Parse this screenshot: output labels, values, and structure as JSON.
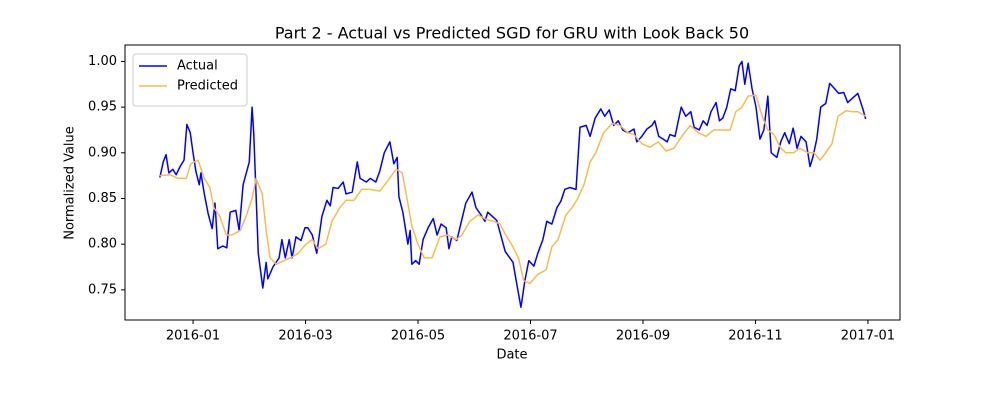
{
  "chart_data": {
    "type": "line",
    "title": "Part 2 - Actual vs Predicted SGD for GRU with Look Back 50",
    "x_label": "Date",
    "y_label": "Normalized Value",
    "xlim": [
      -1.21,
      12.57
    ],
    "ylim": [
      0.717,
      1.018
    ],
    "xticks": [
      {
        "value": 0,
        "label": "2016-01"
      },
      {
        "value": 2,
        "label": "2016-03"
      },
      {
        "value": 4,
        "label": "2016-05"
      },
      {
        "value": 6,
        "label": "2016-07"
      },
      {
        "value": 8,
        "label": "2016-09"
      },
      {
        "value": 10,
        "label": "2016-11"
      },
      {
        "value": 12,
        "label": "2017-01"
      }
    ],
    "yticks": [
      0.75,
      {
        "value": 0.8,
        "label": "0.80"
      },
      0.85,
      {
        "value": 0.9,
        "label": "0.90"
      },
      0.95,
      {
        "value": 1.0,
        "label": "1.00"
      }
    ],
    "legend": "upper left",
    "grid": false,
    "series": [
      {
        "name": "Actual",
        "color": "#0000ff",
        "x": [
          -0.59,
          -0.53,
          -0.48,
          -0.43,
          -0.36,
          -0.3,
          -0.23,
          -0.16,
          -0.11,
          -0.05,
          0.0,
          0.05,
          0.11,
          0.14,
          0.2,
          0.27,
          0.34,
          0.39,
          0.44,
          0.53,
          0.6,
          0.66,
          0.76,
          0.82,
          0.89,
          1.0,
          1.05,
          1.08,
          1.16,
          1.24,
          1.3,
          1.33,
          1.42,
          1.53,
          1.58,
          1.64,
          1.71,
          1.76,
          1.83,
          1.92,
          1.99,
          2.04,
          2.12,
          2.2,
          2.29,
          2.38,
          2.44,
          2.49,
          2.58,
          2.67,
          2.72,
          2.83,
          2.92,
          2.97,
          3.08,
          3.15,
          3.25,
          3.32,
          3.4,
          3.5,
          3.57,
          3.63,
          3.66,
          3.73,
          3.82,
          3.86,
          3.89,
          3.96,
          4.02,
          4.09,
          4.18,
          4.27,
          4.34,
          4.41,
          4.5,
          4.55,
          4.6,
          4.69,
          4.76,
          4.85,
          4.96,
          5.03,
          5.12,
          5.19,
          5.24,
          5.33,
          5.4,
          5.48,
          5.55,
          5.62,
          5.69,
          5.74,
          5.83,
          5.9,
          5.97,
          6.06,
          6.13,
          6.22,
          6.29,
          6.38,
          6.47,
          6.54,
          6.61,
          6.7,
          6.81,
          6.88,
          6.99,
          7.06,
          7.15,
          7.25,
          7.32,
          7.4,
          7.48,
          7.56,
          7.64,
          7.73,
          7.84,
          7.89,
          7.98,
          8.07,
          8.16,
          8.21,
          8.28,
          8.36,
          8.43,
          8.48,
          8.57,
          8.68,
          8.76,
          8.85,
          8.91,
          9.0,
          9.07,
          9.14,
          9.21,
          9.3,
          9.36,
          9.42,
          9.49,
          9.56,
          9.64,
          9.71,
          9.76,
          9.81,
          9.87,
          9.94,
          10.01,
          10.08,
          10.15,
          10.22,
          10.28,
          10.38,
          10.45,
          10.52,
          10.6,
          10.67,
          10.74,
          10.81,
          10.9,
          10.97,
          11.02,
          11.09,
          11.16,
          11.25,
          11.32,
          11.41,
          11.48,
          11.57,
          11.64,
          11.73,
          11.82,
          11.91,
          11.96
        ],
        "values": [
          0.873,
          0.89,
          0.898,
          0.878,
          0.882,
          0.876,
          0.885,
          0.892,
          0.931,
          0.922,
          0.9,
          0.88,
          0.865,
          0.878,
          0.855,
          0.833,
          0.817,
          0.845,
          0.795,
          0.798,
          0.796,
          0.835,
          0.837,
          0.815,
          0.865,
          0.89,
          0.95,
          0.92,
          0.79,
          0.752,
          0.78,
          0.762,
          0.775,
          0.785,
          0.805,
          0.785,
          0.805,
          0.785,
          0.808,
          0.804,
          0.818,
          0.818,
          0.81,
          0.79,
          0.83,
          0.848,
          0.842,
          0.862,
          0.861,
          0.868,
          0.855,
          0.857,
          0.89,
          0.872,
          0.868,
          0.872,
          0.868,
          0.88,
          0.9,
          0.912,
          0.888,
          0.895,
          0.852,
          0.835,
          0.8,
          0.815,
          0.778,
          0.782,
          0.778,
          0.805,
          0.818,
          0.828,
          0.81,
          0.822,
          0.818,
          0.795,
          0.808,
          0.804,
          0.822,
          0.845,
          0.857,
          0.84,
          0.832,
          0.825,
          0.835,
          0.83,
          0.826,
          0.808,
          0.792,
          0.786,
          0.78,
          0.762,
          0.731,
          0.76,
          0.782,
          0.776,
          0.79,
          0.805,
          0.825,
          0.822,
          0.84,
          0.847,
          0.86,
          0.862,
          0.86,
          0.928,
          0.93,
          0.918,
          0.938,
          0.948,
          0.94,
          0.947,
          0.93,
          0.935,
          0.925,
          0.922,
          0.926,
          0.912,
          0.918,
          0.926,
          0.93,
          0.935,
          0.918,
          0.915,
          0.912,
          0.92,
          0.918,
          0.95,
          0.94,
          0.945,
          0.928,
          0.925,
          0.935,
          0.93,
          0.945,
          0.955,
          0.935,
          0.938,
          0.95,
          0.97,
          0.968,
          0.995,
          1.0,
          0.975,
          0.998,
          0.97,
          0.95,
          0.915,
          0.925,
          0.962,
          0.9,
          0.895,
          0.912,
          0.922,
          0.91,
          0.927,
          0.905,
          0.918,
          0.912,
          0.885,
          0.895,
          0.915,
          0.95,
          0.954,
          0.976,
          0.97,
          0.965,
          0.966,
          0.955,
          0.96,
          0.965,
          0.948,
          0.937
        ]
      },
      {
        "name": "Predicted",
        "color": "#f8bb4e",
        "x": [
          -0.59,
          -0.41,
          -0.27,
          -0.12,
          -0.04,
          0.09,
          0.2,
          0.3,
          0.37,
          0.48,
          0.59,
          0.69,
          0.84,
          0.94,
          1.05,
          1.12,
          1.23,
          1.3,
          1.37,
          1.48,
          1.62,
          1.76,
          1.87,
          2.01,
          2.12,
          2.22,
          2.36,
          2.47,
          2.61,
          2.72,
          2.86,
          3.0,
          3.15,
          3.32,
          3.47,
          3.61,
          3.72,
          3.79,
          3.89,
          4.0,
          4.11,
          4.25,
          4.39,
          4.53,
          4.68,
          4.78,
          4.92,
          5.07,
          5.21,
          5.35,
          5.46,
          5.56,
          5.69,
          5.79,
          5.88,
          5.99,
          6.13,
          6.28,
          6.38,
          6.49,
          6.63,
          6.74,
          6.84,
          6.95,
          7.06,
          7.16,
          7.3,
          7.45,
          7.59,
          7.73,
          7.84,
          7.98,
          8.12,
          8.27,
          8.41,
          8.55,
          8.69,
          8.84,
          8.98,
          9.12,
          9.26,
          9.4,
          9.55,
          9.65,
          9.76,
          9.87,
          10.01,
          10.12,
          10.22,
          10.33,
          10.44,
          10.54,
          10.68,
          10.79,
          10.93,
          11.04,
          11.15,
          11.25,
          11.36,
          11.47,
          11.61,
          11.72,
          11.82,
          11.96
        ],
        "values": [
          0.875,
          0.876,
          0.872,
          0.872,
          0.888,
          0.892,
          0.872,
          0.862,
          0.84,
          0.83,
          0.81,
          0.81,
          0.815,
          0.83,
          0.85,
          0.872,
          0.855,
          0.815,
          0.785,
          0.778,
          0.782,
          0.786,
          0.79,
          0.8,
          0.805,
          0.795,
          0.8,
          0.825,
          0.84,
          0.848,
          0.848,
          0.86,
          0.86,
          0.858,
          0.87,
          0.882,
          0.878,
          0.855,
          0.82,
          0.8,
          0.785,
          0.785,
          0.808,
          0.81,
          0.805,
          0.81,
          0.825,
          0.832,
          0.827,
          0.825,
          0.822,
          0.81,
          0.797,
          0.784,
          0.76,
          0.757,
          0.767,
          0.772,
          0.797,
          0.805,
          0.832,
          0.84,
          0.85,
          0.865,
          0.89,
          0.9,
          0.922,
          0.932,
          0.93,
          0.922,
          0.92,
          0.91,
          0.906,
          0.912,
          0.902,
          0.905,
          0.918,
          0.93,
          0.922,
          0.918,
          0.925,
          0.925,
          0.925,
          0.945,
          0.95,
          0.962,
          0.963,
          0.94,
          0.925,
          0.92,
          0.906,
          0.9,
          0.9,
          0.905,
          0.9,
          0.9,
          0.892,
          0.9,
          0.91,
          0.94,
          0.946,
          0.945,
          0.945,
          0.94
        ]
      }
    ]
  }
}
